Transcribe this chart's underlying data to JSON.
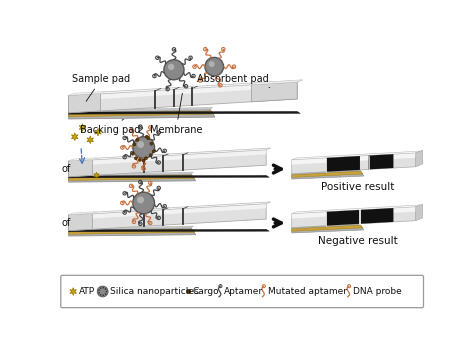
{
  "fig_width": 4.74,
  "fig_height": 3.63,
  "dpi": 100,
  "bg_color": "#ffffff",
  "labels": {
    "sample_pad": "Sample pad",
    "absorbent_pad": "Absorbent pad",
    "backing_pad": "Backing pad",
    "membrane": "Membrane",
    "positive_result": "Positive result",
    "negative_result": "Negative result",
    "of_label": "of"
  },
  "strip_color_gold": "#c8a040",
  "arrow_color": "#111111",
  "atp_color": "#c8a800",
  "nanoparticle_color": "#888888",
  "aptamer_color_dark": "#444444",
  "aptamer_color_light": "#c87040",
  "cargo_color": "#5a3a00",
  "dashed_arrow_color": "#4070c0",
  "text_color": "#111111",
  "font_size_label": 7,
  "font_size_result": 7.5
}
